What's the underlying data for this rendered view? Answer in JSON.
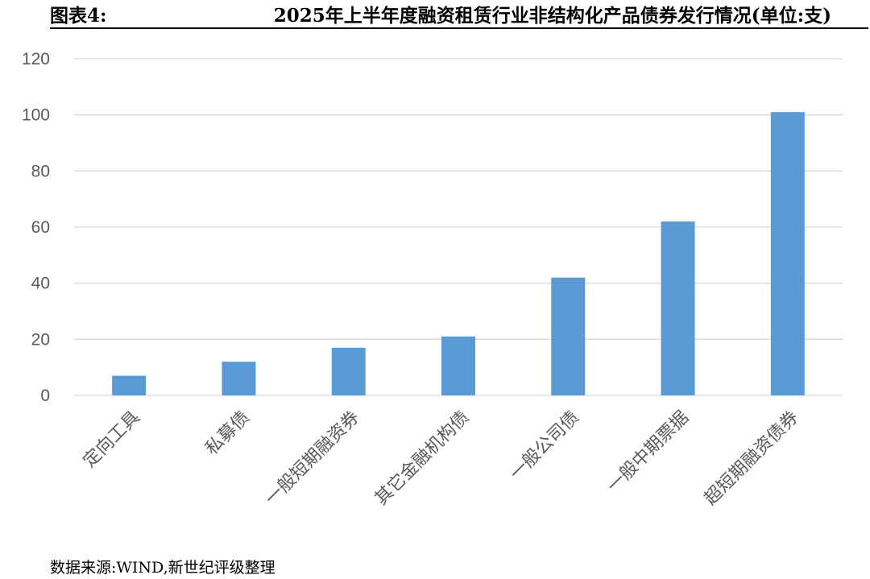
{
  "title": {
    "prefix": "图表4:",
    "text": "2025年上半年度融资租赁行业非结构化产品债券发行情况(单位:支)"
  },
  "source": "数据来源:WIND,新世纪评级整理",
  "chart_data": {
    "type": "bar",
    "categories": [
      "定向工具",
      "私募债",
      "一般短期融资券",
      "其它金融机构债",
      "一般公司债",
      "一般中期票据",
      "超短期融资债券"
    ],
    "values": [
      7,
      12,
      17,
      21,
      42,
      62,
      101
    ],
    "ylim": [
      0,
      120
    ],
    "yticks": [
      0,
      20,
      40,
      60,
      80,
      100,
      120
    ],
    "grid": true,
    "bar_color": "#5B9BD5",
    "grid_color": "#D9D9D9"
  }
}
